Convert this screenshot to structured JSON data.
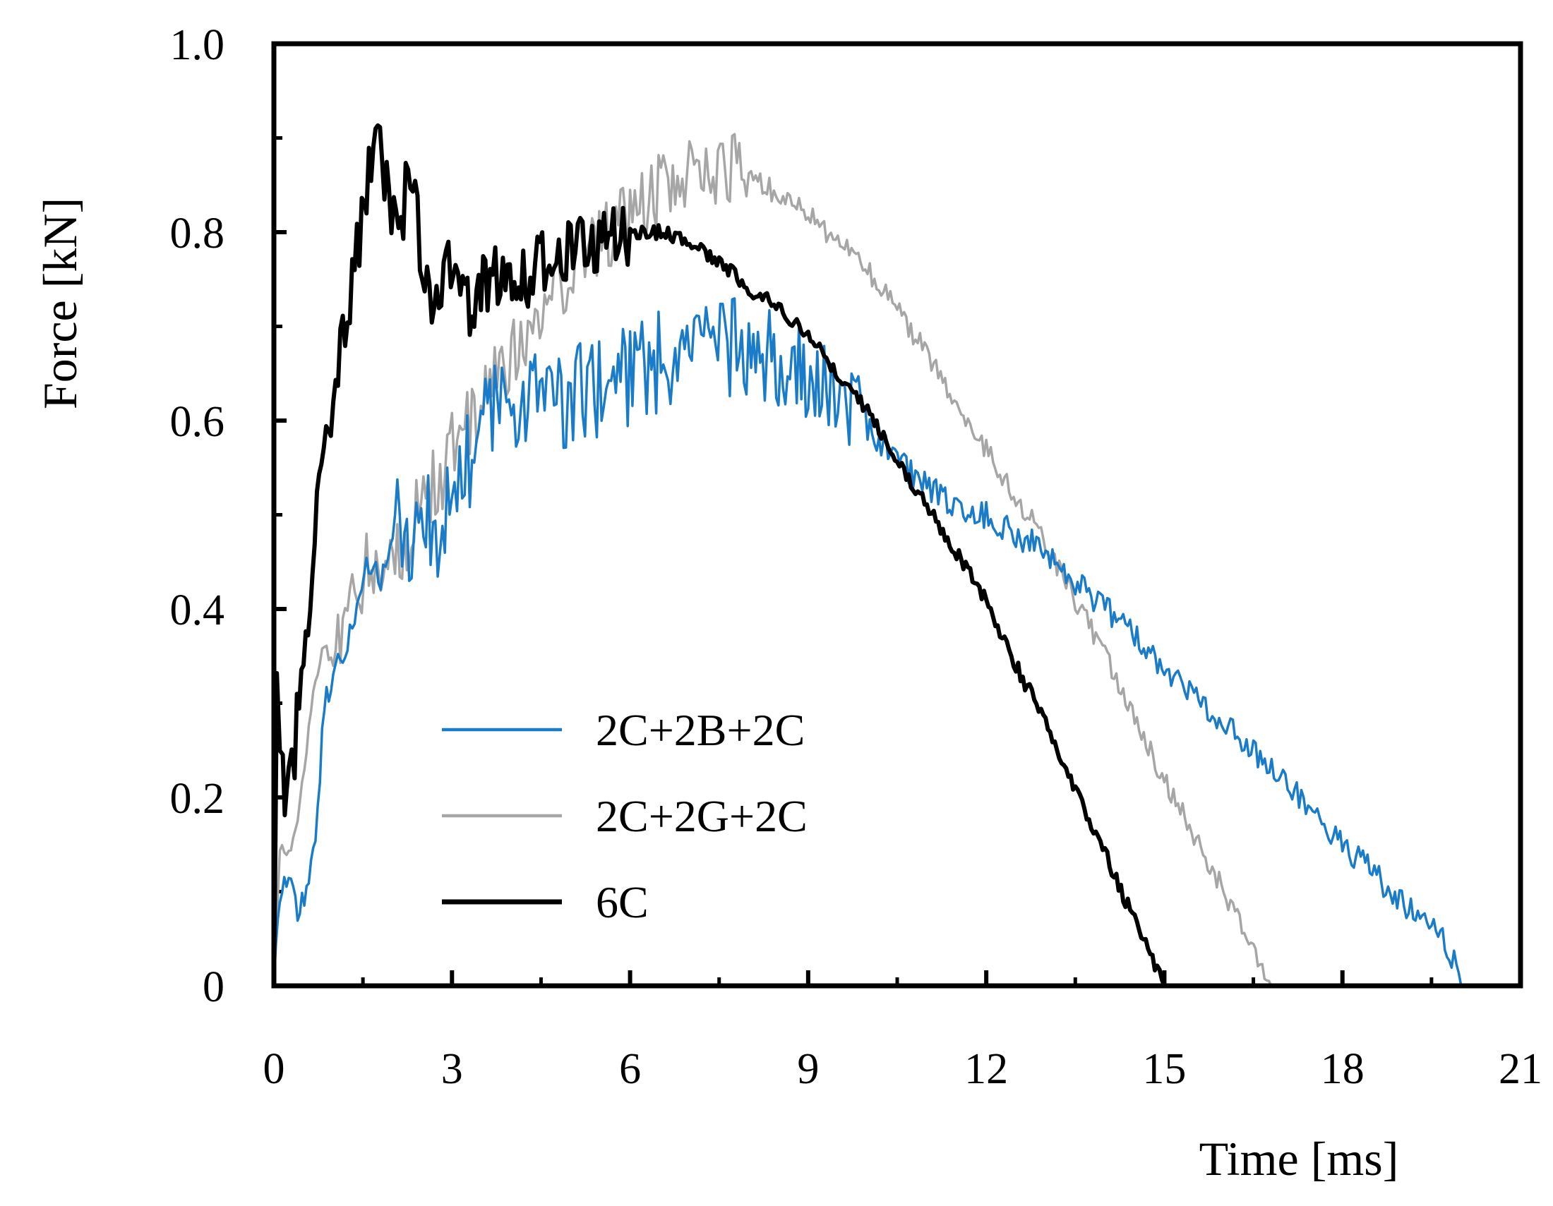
{
  "chart_data": {
    "type": "line",
    "title": "",
    "xlabel": "Time [ms]",
    "ylabel": "Force [kN]",
    "xlim": [
      0,
      21
    ],
    "ylim": [
      0,
      1.0
    ],
    "xticks": [
      0,
      3,
      6,
      9,
      12,
      15,
      18,
      21
    ],
    "xtick_labels": [
      "0",
      "3",
      "6",
      "9",
      "12",
      "15",
      "18",
      "21"
    ],
    "yticks": [
      0,
      0.2,
      0.4,
      0.6,
      0.8,
      1.0
    ],
    "ytick_labels": [
      "0",
      "0.2",
      "0.4",
      "0.6",
      "0.8",
      "1.0"
    ],
    "grid": false,
    "legend_position": "lower-left",
    "series": [
      {
        "name": "2C+2B+2C",
        "color": "#1a7cc9",
        "width": "thin",
        "x": [
          0,
          0.1,
          0.25,
          0.4,
          0.55,
          0.7,
          0.85,
          1.0,
          1.2,
          1.4,
          1.6,
          1.8,
          2.0,
          2.2,
          2.4,
          2.6,
          2.8,
          3.0,
          3.3,
          3.6,
          4.0,
          4.4,
          4.8,
          5.2,
          5.6,
          6.0,
          6.4,
          6.8,
          7.2,
          7.6,
          8.0,
          8.5,
          9.0,
          9.5,
          10.0,
          10.5,
          11.0,
          11.5,
          12.0,
          12.5,
          13.0,
          13.5,
          14.0,
          14.5,
          15.0,
          15.5,
          16.0,
          16.5,
          17.0,
          17.5,
          18.0,
          18.5,
          19.0,
          19.5,
          19.8,
          20.0
        ],
        "y": [
          0,
          0.1,
          0.12,
          0.08,
          0.1,
          0.15,
          0.3,
          0.33,
          0.35,
          0.4,
          0.45,
          0.43,
          0.48,
          0.5,
          0.46,
          0.5,
          0.48,
          0.52,
          0.56,
          0.6,
          0.62,
          0.63,
          0.62,
          0.63,
          0.64,
          0.65,
          0.66,
          0.67,
          0.68,
          0.68,
          0.67,
          0.66,
          0.65,
          0.62,
          0.59,
          0.56,
          0.53,
          0.51,
          0.5,
          0.48,
          0.46,
          0.43,
          0.4,
          0.37,
          0.34,
          0.31,
          0.28,
          0.25,
          0.22,
          0.18,
          0.15,
          0.12,
          0.09,
          0.06,
          0.04,
          0.0
        ]
      },
      {
        "name": "2C+2G+2C",
        "color": "#a6a6a6",
        "width": "thin",
        "x": [
          0,
          0.1,
          0.25,
          0.4,
          0.55,
          0.7,
          0.85,
          1.0,
          1.2,
          1.4,
          1.6,
          1.8,
          2.0,
          2.2,
          2.4,
          2.6,
          2.8,
          3.0,
          3.3,
          3.6,
          4.0,
          4.4,
          4.8,
          5.2,
          5.6,
          6.0,
          6.4,
          6.8,
          7.2,
          7.6,
          8.0,
          8.5,
          9.0,
          9.5,
          10.0,
          10.5,
          11.0,
          11.5,
          12.0,
          12.5,
          13.0,
          13.5,
          14.0,
          14.5,
          15.0,
          15.5,
          16.0,
          16.5,
          16.8
        ],
        "y": [
          0,
          0.15,
          0.14,
          0.18,
          0.25,
          0.33,
          0.36,
          0.35,
          0.37,
          0.42,
          0.45,
          0.43,
          0.45,
          0.47,
          0.5,
          0.52,
          0.54,
          0.57,
          0.6,
          0.63,
          0.67,
          0.7,
          0.74,
          0.78,
          0.8,
          0.82,
          0.84,
          0.86,
          0.87,
          0.87,
          0.86,
          0.84,
          0.82,
          0.79,
          0.76,
          0.72,
          0.67,
          0.62,
          0.57,
          0.52,
          0.47,
          0.41,
          0.35,
          0.28,
          0.22,
          0.16,
          0.1,
          0.04,
          0.0
        ]
      },
      {
        "name": "6C",
        "color": "#000000",
        "width": "thick",
        "x": [
          0,
          0.05,
          0.15,
          0.25,
          0.35,
          0.5,
          0.65,
          0.8,
          1.0,
          1.2,
          1.4,
          1.6,
          1.75,
          1.9,
          2.1,
          2.3,
          2.5,
          2.7,
          2.9,
          3.1,
          3.3,
          3.6,
          3.9,
          4.2,
          4.6,
          5.0,
          5.4,
          5.8,
          6.2,
          6.6,
          7.0,
          7.5,
          8.0,
          8.5,
          9.0,
          9.5,
          10.0,
          10.5,
          11.0,
          11.5,
          12.0,
          12.5,
          13.0,
          13.5,
          14.0,
          14.5,
          14.8,
          15.0
        ],
        "y": [
          0,
          0.3,
          0.22,
          0.2,
          0.25,
          0.35,
          0.45,
          0.55,
          0.62,
          0.7,
          0.78,
          0.86,
          0.9,
          0.84,
          0.78,
          0.88,
          0.76,
          0.72,
          0.78,
          0.74,
          0.72,
          0.75,
          0.76,
          0.75,
          0.77,
          0.78,
          0.79,
          0.8,
          0.8,
          0.8,
          0.79,
          0.77,
          0.74,
          0.72,
          0.69,
          0.65,
          0.61,
          0.56,
          0.51,
          0.46,
          0.41,
          0.34,
          0.28,
          0.21,
          0.14,
          0.07,
          0.03,
          0.0
        ]
      }
    ]
  }
}
